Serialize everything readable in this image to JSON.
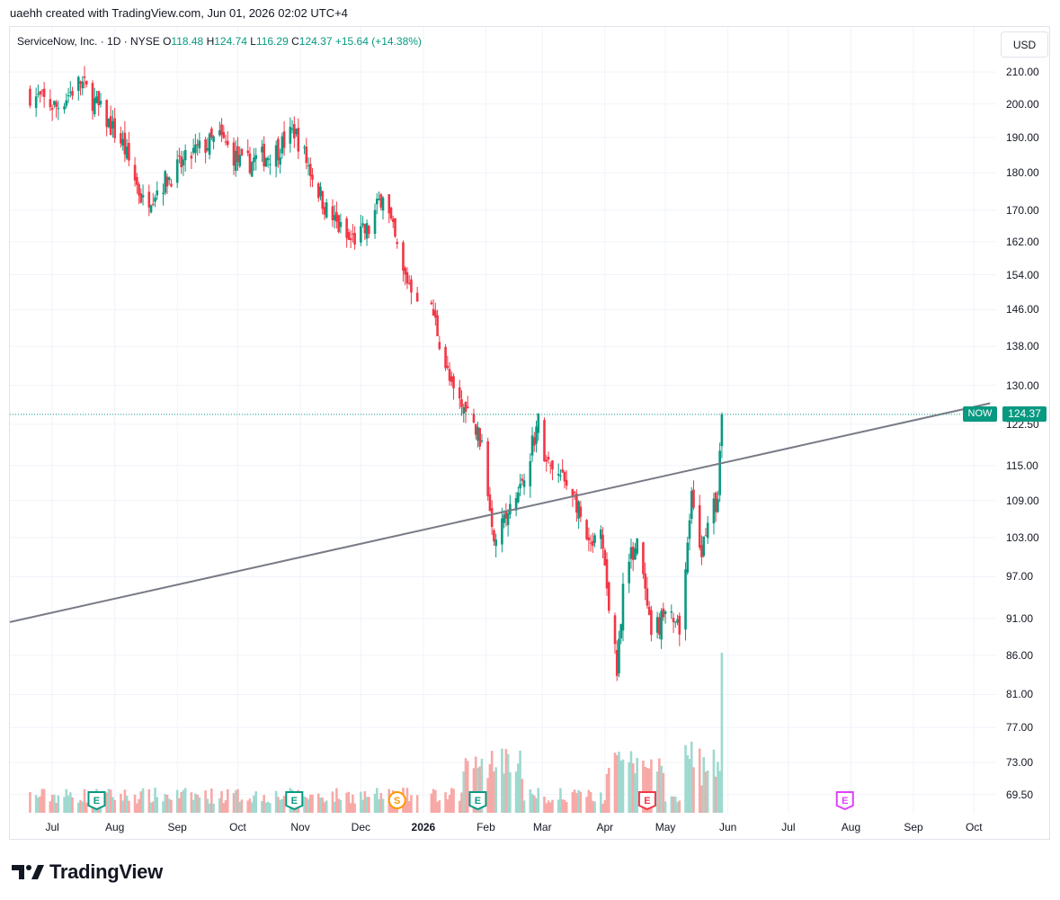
{
  "caption": "uaehh created with TradingView.com, Jun 01, 2026 02:02 UTC+4",
  "legend": {
    "symbol_line": "ServiceNow, Inc. · 1D · NYSE",
    "o_label": "O",
    "o_value": "118.48",
    "h_label": "H",
    "h_value": "124.74",
    "l_label": "L",
    "l_value": "116.29",
    "c_label": "C",
    "c_value": "124.37",
    "change": "+15.64 (+14.38%)"
  },
  "currency": "USD",
  "last_price": "124.37",
  "ticker": "NOW",
  "brand": "TradingView",
  "colors": {
    "up": "#089981",
    "down": "#f23645",
    "up_vol": "#9fd9cf",
    "down_vol": "#f7a9a7",
    "trendline": "#787b86",
    "grid": "#f0f3fa"
  },
  "chart_data": {
    "type": "candlestick",
    "symbol": "ServiceNow, Inc.",
    "interval": "1D",
    "exchange": "NYSE",
    "y_ticks": [
      "210.00",
      "200.00",
      "190.00",
      "180.00",
      "170.00",
      "162.00",
      "154.00",
      "146.00",
      "138.00",
      "130.00",
      "122.50",
      "115.00",
      "109.00",
      "103.00",
      "97.00",
      "91.00",
      "86.00",
      "81.00",
      "77.00",
      "73.00",
      "69.50"
    ],
    "x_ticks": [
      "Jul",
      "Aug",
      "Sep",
      "Oct",
      "Nov",
      "Dec",
      "2026",
      "Feb",
      "Mar",
      "Apr",
      "May",
      "Jun",
      "Jul",
      "Aug",
      "Sep",
      "Oct"
    ],
    "y_scale": "log",
    "ylim": [
      67.5,
      225
    ],
    "series": [
      {
        "name": "price",
        "x": [
          "2025-06-20",
          "2025-07-03",
          "2025-07-15",
          "2025-08-05",
          "2025-08-15",
          "2025-09-10",
          "2025-09-22",
          "2025-10-03",
          "2025-10-20",
          "2025-10-29",
          "2025-11-14",
          "2025-11-25",
          "2025-12-05",
          "2025-12-12",
          "2025-12-22",
          "2026-01-06",
          "2026-01-15",
          "2026-01-23",
          "2026-01-29",
          "2026-02-05",
          "2026-02-15",
          "2026-02-27",
          "2026-03-03",
          "2026-03-16",
          "2026-03-24",
          "2026-03-30",
          "2026-04-07",
          "2026-04-10",
          "2026-04-17",
          "2026-04-24",
          "2026-05-01",
          "2026-05-08",
          "2026-05-14",
          "2026-05-18",
          "2026-05-22",
          "2026-05-27",
          "2026-05-29"
        ],
        "close": [
          203,
          199,
          207,
          188,
          172,
          186,
          190,
          182,
          186,
          192,
          170,
          162,
          165,
          175,
          154,
          145,
          129,
          124,
          120,
          104,
          108,
          123,
          115,
          111,
          101,
          103,
          84,
          96,
          103,
          88,
          92,
          89,
          110,
          100,
          106,
          109,
          124.37
        ]
      }
    ],
    "trendline": {
      "x": [
        "2025-06-10",
        "2026-10-09"
      ],
      "y": [
        90.5,
        126.5
      ]
    },
    "events": [
      {
        "date": "2025-07-23",
        "label": "E"
      },
      {
        "date": "2025-10-29",
        "label": "E"
      },
      {
        "date": "2025-12-19",
        "label": "S"
      },
      {
        "date": "2026-01-28",
        "label": "E"
      },
      {
        "date": "2026-04-22",
        "label": "E"
      },
      {
        "date": "2026-07-29",
        "label": "E"
      }
    ]
  }
}
